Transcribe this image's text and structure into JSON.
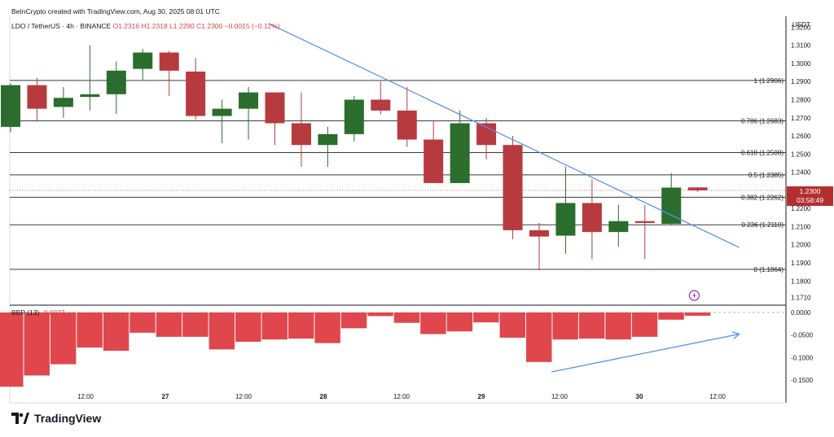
{
  "header": {
    "top_line": "BeInCrypto created with TradingView.com, Aug 30, 2025 08:01 UTC",
    "symbol": "LDO / TetherUS · 4h · BINANCE",
    "ohlc": "O1.2316 H1.2318 L1.2290 C1.2300 −0.0015 (−0.12%)"
  },
  "axis": {
    "currency": "USDT"
  },
  "current_price": {
    "price": "1.2300",
    "countdown": "03:58:49"
  },
  "logo": {
    "text": "TradingView"
  },
  "colors": {
    "up": "#2a6d2c",
    "down": "#b73a3f",
    "trend": "#5b8fe6",
    "fib": "#3a3a3a",
    "bbp": "#e0474c"
  },
  "chart_data": [
    {
      "type": "candlestick",
      "title": "LDO / TetherUS · 4h · BINANCE",
      "ylabel": "USDT",
      "ylim": [
        1.168,
        1.326
      ],
      "y_ticks": [
        "1.3200",
        "1.3100",
        "1.3000",
        "1.2900",
        "1.2800",
        "1.2700",
        "1.2600",
        "1.2500",
        "1.2400",
        "1.2300",
        "1.2200",
        "1.2100",
        "1.2000",
        "1.1900",
        "1.1800",
        "1.1710"
      ],
      "x_ticks": [
        "12:00",
        "27",
        "12:00",
        "28",
        "12:00",
        "29",
        "12:00",
        "30",
        "12:00"
      ],
      "candles": [
        {
          "o": 1.265,
          "h": 1.289,
          "l": 1.262,
          "c": 1.288
        },
        {
          "o": 1.288,
          "h": 1.292,
          "l": 1.268,
          "c": 1.275
        },
        {
          "o": 1.276,
          "h": 1.287,
          "l": 1.27,
          "c": 1.281
        },
        {
          "o": 1.2815,
          "h": 1.31,
          "l": 1.274,
          "c": 1.283
        },
        {
          "o": 1.283,
          "h": 1.301,
          "l": 1.272,
          "c": 1.296
        },
        {
          "o": 1.297,
          "h": 1.308,
          "l": 1.291,
          "c": 1.306
        },
        {
          "o": 1.306,
          "h": 1.307,
          "l": 1.282,
          "c": 1.296
        },
        {
          "o": 1.2955,
          "h": 1.303,
          "l": 1.269,
          "c": 1.271
        },
        {
          "o": 1.271,
          "h": 1.28,
          "l": 1.256,
          "c": 1.275
        },
        {
          "o": 1.275,
          "h": 1.287,
          "l": 1.258,
          "c": 1.284
        },
        {
          "o": 1.284,
          "h": 1.283,
          "l": 1.255,
          "c": 1.267
        },
        {
          "o": 1.267,
          "h": 1.284,
          "l": 1.243,
          "c": 1.255
        },
        {
          "o": 1.255,
          "h": 1.265,
          "l": 1.243,
          "c": 1.261
        },
        {
          "o": 1.261,
          "h": 1.282,
          "l": 1.257,
          "c": 1.28
        },
        {
          "o": 1.28,
          "h": 1.29,
          "l": 1.272,
          "c": 1.274
        },
        {
          "o": 1.274,
          "h": 1.287,
          "l": 1.254,
          "c": 1.258
        },
        {
          "o": 1.258,
          "h": 1.268,
          "l": 1.234,
          "c": 1.234
        },
        {
          "o": 1.234,
          "h": 1.274,
          "l": 1.234,
          "c": 1.267
        },
        {
          "o": 1.267,
          "h": 1.27,
          "l": 1.247,
          "c": 1.255
        },
        {
          "o": 1.255,
          "h": 1.26,
          "l": 1.203,
          "c": 1.208
        },
        {
          "o": 1.208,
          "h": 1.212,
          "l": 1.186,
          "c": 1.2045
        },
        {
          "o": 1.205,
          "h": 1.243,
          "l": 1.195,
          "c": 1.223
        },
        {
          "o": 1.223,
          "h": 1.236,
          "l": 1.192,
          "c": 1.207
        },
        {
          "o": 1.207,
          "h": 1.222,
          "l": 1.199,
          "c": 1.213
        },
        {
          "o": 1.213,
          "h": 1.222,
          "l": 1.192,
          "c": 1.212
        },
        {
          "o": 1.2115,
          "h": 1.2395,
          "l": 1.211,
          "c": 1.2315
        },
        {
          "o": 1.2316,
          "h": 1.2318,
          "l": 1.229,
          "c": 1.23
        }
      ],
      "fib_levels": [
        {
          "ratio": "1",
          "price": 1.2906,
          "label": "1 (1.2906)"
        },
        {
          "ratio": "0.786",
          "price": 1.2683,
          "label": "0.786 (1.2683)"
        },
        {
          "ratio": "0.618",
          "price": 1.2508,
          "label": "0.618 (1.2508)"
        },
        {
          "ratio": "0.5",
          "price": 1.2385,
          "label": "0.5 (1.2385)"
        },
        {
          "ratio": "0.382",
          "price": 1.2262,
          "label": "0.382 (1.2262)"
        },
        {
          "ratio": "0.236",
          "price": 1.211,
          "label": "0.236 (1.2110)"
        },
        {
          "ratio": "0",
          "price": 1.1864,
          "label": "0 (1.1864)"
        }
      ],
      "trendline": {
        "start": {
          "bar": 9.8,
          "price": 1.322
        },
        "end": {
          "bar": 27.6,
          "price": 1.1985
        }
      },
      "current_price_line": 1.23
    },
    {
      "type": "bar",
      "title": "BBP (13)",
      "value_label": "-0.0073",
      "ylim": [
        -0.17,
        0.0
      ],
      "y_ticks": [
        "0.0000",
        "-0.0500",
        "-0.1000",
        "-0.1500"
      ],
      "values": [
        -0.165,
        -0.14,
        -0.115,
        -0.078,
        -0.085,
        -0.045,
        -0.054,
        -0.054,
        -0.082,
        -0.065,
        -0.06,
        -0.058,
        -0.068,
        -0.035,
        -0.008,
        -0.023,
        -0.048,
        -0.042,
        -0.022,
        -0.056,
        -0.11,
        -0.06,
        -0.058,
        -0.06,
        -0.054,
        -0.016,
        -0.0073
      ],
      "arrows": [
        {
          "start": {
            "bar": 20.5,
            "value": -0.132
          },
          "end": {
            "bar": 27.6,
            "value": -0.048
          }
        }
      ]
    }
  ]
}
